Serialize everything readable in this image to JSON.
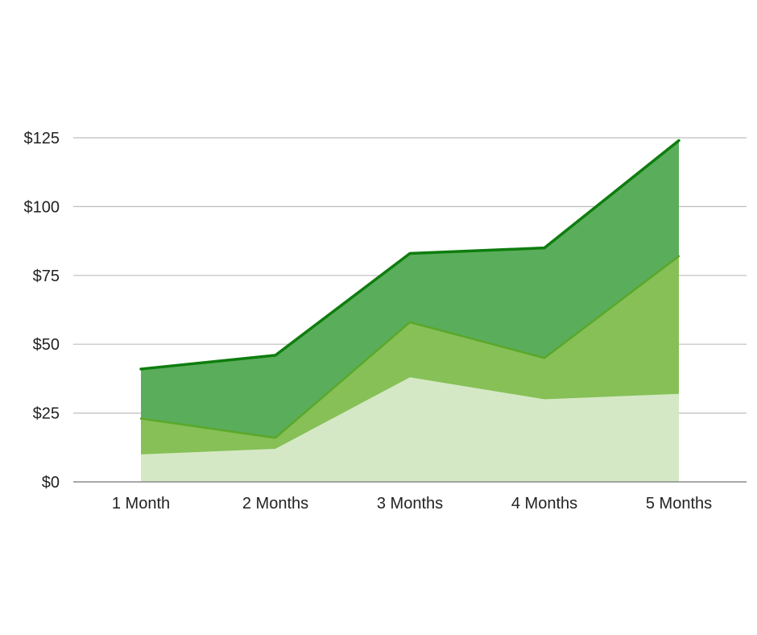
{
  "chart_data": {
    "type": "area",
    "stacked": true,
    "categories": [
      "1 Month",
      "2 Months",
      "3 Months",
      "4 Months",
      "5 Months"
    ],
    "series": [
      {
        "values": [
          10,
          12,
          38,
          30,
          32
        ],
        "fill": "#d5e8c5",
        "stroke": "#d5e8c5"
      },
      {
        "values": [
          13,
          4,
          20,
          15,
          50
        ],
        "fill": "#86c057",
        "stroke": "#5aa82a"
      },
      {
        "values": [
          18,
          30,
          25,
          40,
          42
        ],
        "fill": "#5aad5a",
        "stroke": "#0e7d0e"
      }
    ],
    "ylim": [
      0,
      125
    ],
    "yticks": [
      0,
      25,
      50,
      75,
      100,
      125
    ],
    "ytick_labels": [
      "$0",
      "$25",
      "$50",
      "$75",
      "$100",
      "$125"
    ],
    "grid": true,
    "legend": "none",
    "title": "",
    "xlabel": "",
    "ylabel": ""
  }
}
